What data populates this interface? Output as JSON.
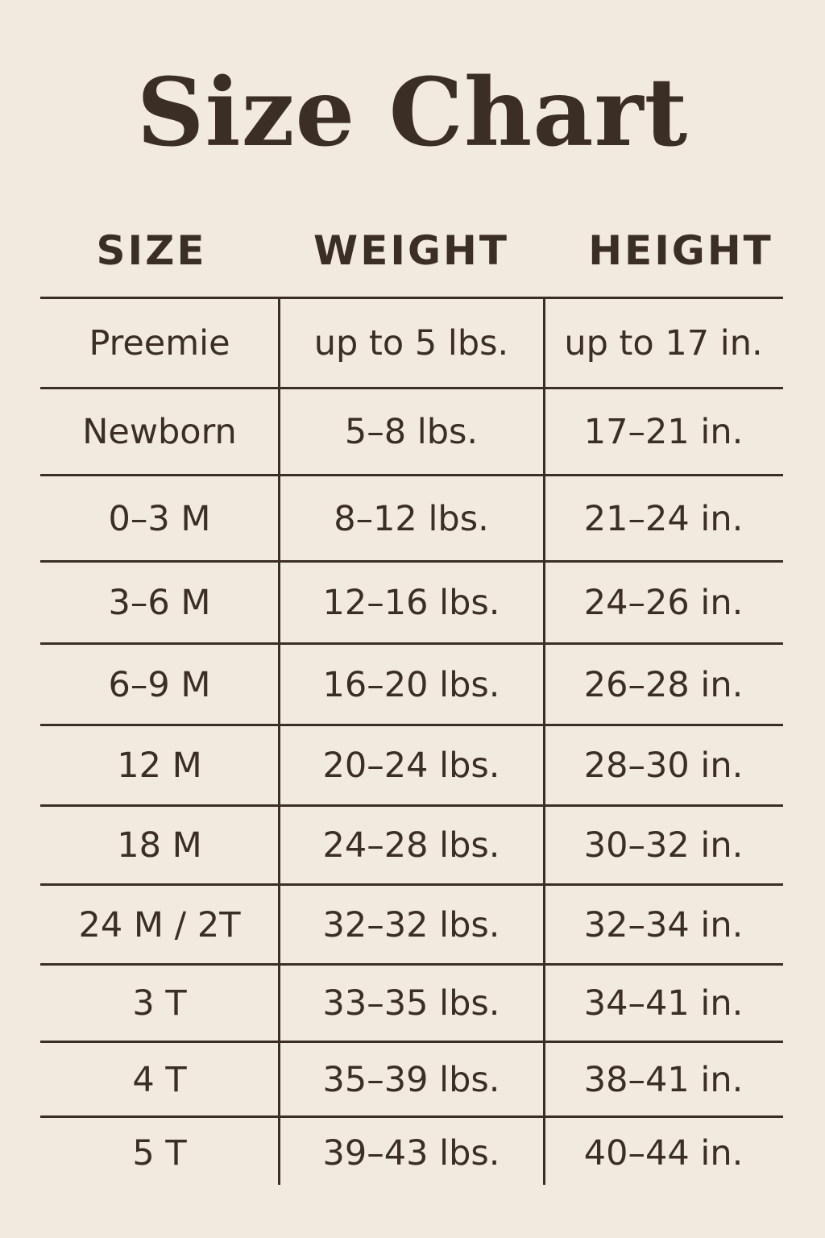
{
  "title": "Size Chart",
  "headers": [
    "SIZE",
    "WEIGHT",
    "HEIGHT"
  ],
  "rows": [
    {
      "size": "Preemie",
      "weight": "up to 5 lbs.",
      "height": "up to 17 in."
    },
    {
      "size": "Newborn",
      "weight": "5–8 lbs.",
      "height": "17–21 in."
    },
    {
      "size": "0–3 M",
      "weight": "8–12 lbs.",
      "height": "21–24 in."
    },
    {
      "size": "3–6 M",
      "weight": "12–16 lbs.",
      "height": "24–26 in."
    },
    {
      "size": "6–9 M",
      "weight": "16–20 lbs.",
      "height": "26–28 in."
    },
    {
      "size": "12 M",
      "weight": "20–24 lbs.",
      "height": "28–30 in."
    },
    {
      "size": "18 M",
      "weight": "24–28 lbs.",
      "height": "30–32 in."
    },
    {
      "size": "24 M / 2T",
      "weight": "32–32 lbs.",
      "height": "32–34 in."
    },
    {
      "size": "3 T",
      "weight": "33–35 lbs.",
      "height": "34–41 in."
    },
    {
      "size": "4 T",
      "weight": "35–39 lbs.",
      "height": "38–41 in."
    },
    {
      "size": "5 T",
      "weight": "39–43 lbs.",
      "height": "40–44 in."
    }
  ],
  "colors": {
    "background": "#f2eadf",
    "ink": "#3b2e24"
  }
}
